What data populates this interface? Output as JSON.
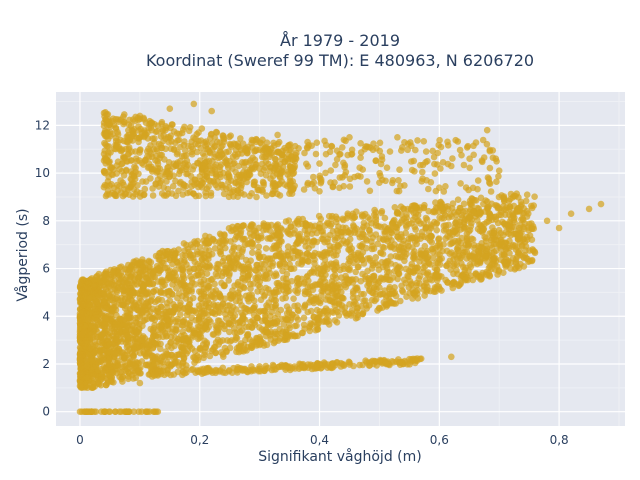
{
  "chart_data": {
    "type": "scatter",
    "title_lines": [
      "År 1979 - 2019",
      "Koordinat (Sweref 99 TM): E 480963, N 6206720"
    ],
    "xlabel": "Signifikant våghöjd (m)",
    "ylabel": "Vågperiod (s)",
    "xlim": [
      -0.04,
      0.91
    ],
    "ylim": [
      -0.6,
      13.4
    ],
    "x_ticks": [
      0,
      0.2,
      0.4,
      0.6,
      0.8
    ],
    "x_tick_labels": [
      "0",
      "0,2",
      "0,4",
      "0,6",
      "0,8"
    ],
    "y_ticks": [
      0,
      2,
      4,
      6,
      8,
      10,
      12
    ],
    "y_tick_labels": [
      "0",
      "2",
      "4",
      "6",
      "8",
      "10",
      "12"
    ],
    "grid": true,
    "marker_color": "#D4A320",
    "plot_bg": "#E5E8F0",
    "point_clusters": [
      {
        "name": "main",
        "x_range": [
          0.0,
          0.75
        ],
        "y_low": 1.0,
        "y_high": 9.0
      },
      {
        "name": "swell",
        "x_range": [
          0.05,
          0.35
        ],
        "y_low": 9.0,
        "y_high": 12.8
      },
      {
        "name": "low-band",
        "x_range": [
          0.18,
          0.55
        ],
        "y_low": 1.5,
        "y_high": 2.2
      },
      {
        "name": "calm",
        "x_range": [
          0.0,
          0.13
        ],
        "y_low": 0.0,
        "y_high": 0.0
      }
    ],
    "sample_points": [
      [
        0.0,
        0.0
      ],
      [
        0.02,
        0.0
      ],
      [
        0.05,
        0.0
      ],
      [
        0.08,
        0.0
      ],
      [
        0.11,
        0.0
      ],
      [
        0.13,
        0.0
      ],
      [
        0.02,
        1.5
      ],
      [
        0.0,
        2.2
      ],
      [
        0.05,
        2.0
      ],
      [
        0.1,
        1.2
      ],
      [
        0.2,
        1.7
      ],
      [
        0.3,
        1.9
      ],
      [
        0.4,
        2.0
      ],
      [
        0.5,
        2.1
      ],
      [
        0.55,
        2.2
      ],
      [
        0.62,
        2.3
      ],
      [
        0.1,
        12.4
      ],
      [
        0.15,
        12.7
      ],
      [
        0.19,
        12.9
      ],
      [
        0.22,
        12.6
      ],
      [
        0.12,
        11.8
      ],
      [
        0.28,
        11.1
      ],
      [
        0.33,
        11.6
      ],
      [
        0.38,
        11.3
      ],
      [
        0.45,
        11.5
      ],
      [
        0.53,
        11.5
      ],
      [
        0.68,
        11.8
      ],
      [
        0.72,
        8.1
      ],
      [
        0.78,
        8.0
      ],
      [
        0.82,
        8.3
      ],
      [
        0.85,
        8.5
      ],
      [
        0.87,
        8.7
      ],
      [
        0.8,
        7.7
      ],
      [
        0.74,
        7.2
      ],
      [
        0.65,
        6.5
      ],
      [
        0.6,
        5.7
      ],
      [
        0.5,
        5.2
      ],
      [
        0.45,
        4.5
      ],
      [
        0.35,
        3.5
      ],
      [
        0.62,
        10.3
      ],
      [
        0.58,
        10.5
      ],
      [
        0.7,
        10.1
      ],
      [
        0.5,
        9.6
      ],
      [
        0.25,
        10.5
      ],
      [
        0.4,
        10.4
      ]
    ]
  }
}
